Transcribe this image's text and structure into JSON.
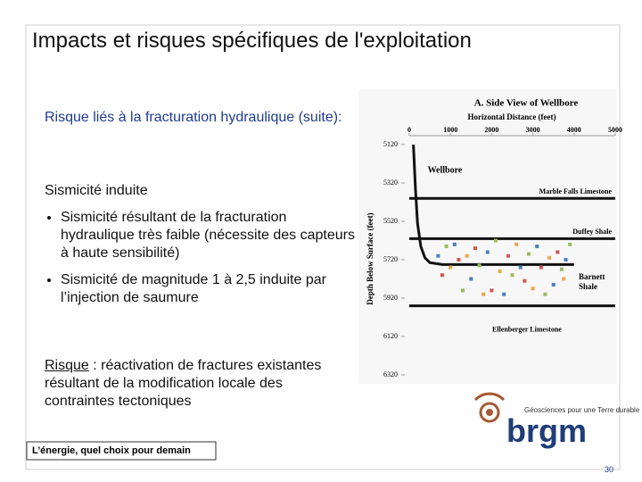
{
  "header": {
    "title": "Impacts et risques spécifiques de l'exploitation"
  },
  "body": {
    "subtitle": "Risque liés à la fracturation hydraulique (suite):",
    "section": "Sismicité induite",
    "bullets": [
      "Sismicité résultant de la fracturation hydraulique très faible (nécessite des capteurs à haute sensibilité)",
      "Sismicité de magnitude 1 à 2,5 induite par l’injection de saumure"
    ],
    "risk_label": "Risque",
    "risk_text": " : réactivation de fractures existantes résultant de la modification locale des contraintes tectoniques"
  },
  "chart_data": {
    "type": "scatter",
    "title": "A. Side View of Wellbore",
    "x_label": "Horizontal Distance (feet)",
    "y_label": "Depth Below Surface (feet)",
    "xlim": [
      0,
      5000
    ],
    "xticks": [
      0,
      1000,
      2000,
      3000,
      4000,
      5000
    ],
    "ylim": [
      5120,
      6320
    ],
    "yticks": [
      5120,
      5320,
      5520,
      5720,
      5920,
      6120,
      6320
    ],
    "y_inverted": true,
    "horizons": [
      {
        "label": "Marble Falls Limestone",
        "y": 5400
      },
      {
        "label": "Duffey Shale",
        "y": 5610
      },
      {
        "label": "Ellenberger Limestone",
        "y": 5960
      }
    ],
    "zone_labels": [
      "Barnett",
      "Shale"
    ],
    "series": [
      {
        "name": "Wellbore",
        "type": "line",
        "color": "#111111",
        "x": [
          100,
          150,
          200,
          280,
          380,
          500,
          800,
          1500,
          2500,
          3500,
          4000
        ],
        "values": [
          5120,
          5350,
          5530,
          5650,
          5710,
          5735,
          5745,
          5745,
          5745,
          5745,
          5745
        ]
      },
      {
        "color": "#4a7fc1",
        "x": [
          700,
          1100,
          1500,
          1900,
          2300,
          2700,
          3100,
          3500,
          3800
        ],
        "values": [
          5700,
          5640,
          5820,
          5680,
          5900,
          5760,
          5650,
          5850,
          5720
        ]
      },
      {
        "color": "#d9534f",
        "x": [
          800,
          1200,
          1600,
          2000,
          2400,
          2800,
          3200,
          3600
        ],
        "values": [
          5800,
          5720,
          5660,
          5880,
          5700,
          5830,
          5760,
          5680
        ]
      },
      {
        "color": "#9bbb59",
        "x": [
          900,
          1300,
          1700,
          2100,
          2500,
          2900,
          3300,
          3700,
          3900
        ],
        "values": [
          5650,
          5880,
          5750,
          5620,
          5800,
          5690,
          5900,
          5770,
          5640
        ]
      },
      {
        "color": "#f0a64a",
        "x": [
          1000,
          1400,
          1800,
          2200,
          2600,
          3000,
          3400,
          3750
        ],
        "values": [
          5760,
          5700,
          5900,
          5780,
          5640,
          5870,
          5710,
          5820
        ]
      }
    ]
  },
  "logo": {
    "name": "brgm",
    "tagline": "Géosciences pour une Terre durable"
  },
  "footer": {
    "tagline": "L’énergie, quel choix pour demain",
    "page": "30"
  }
}
